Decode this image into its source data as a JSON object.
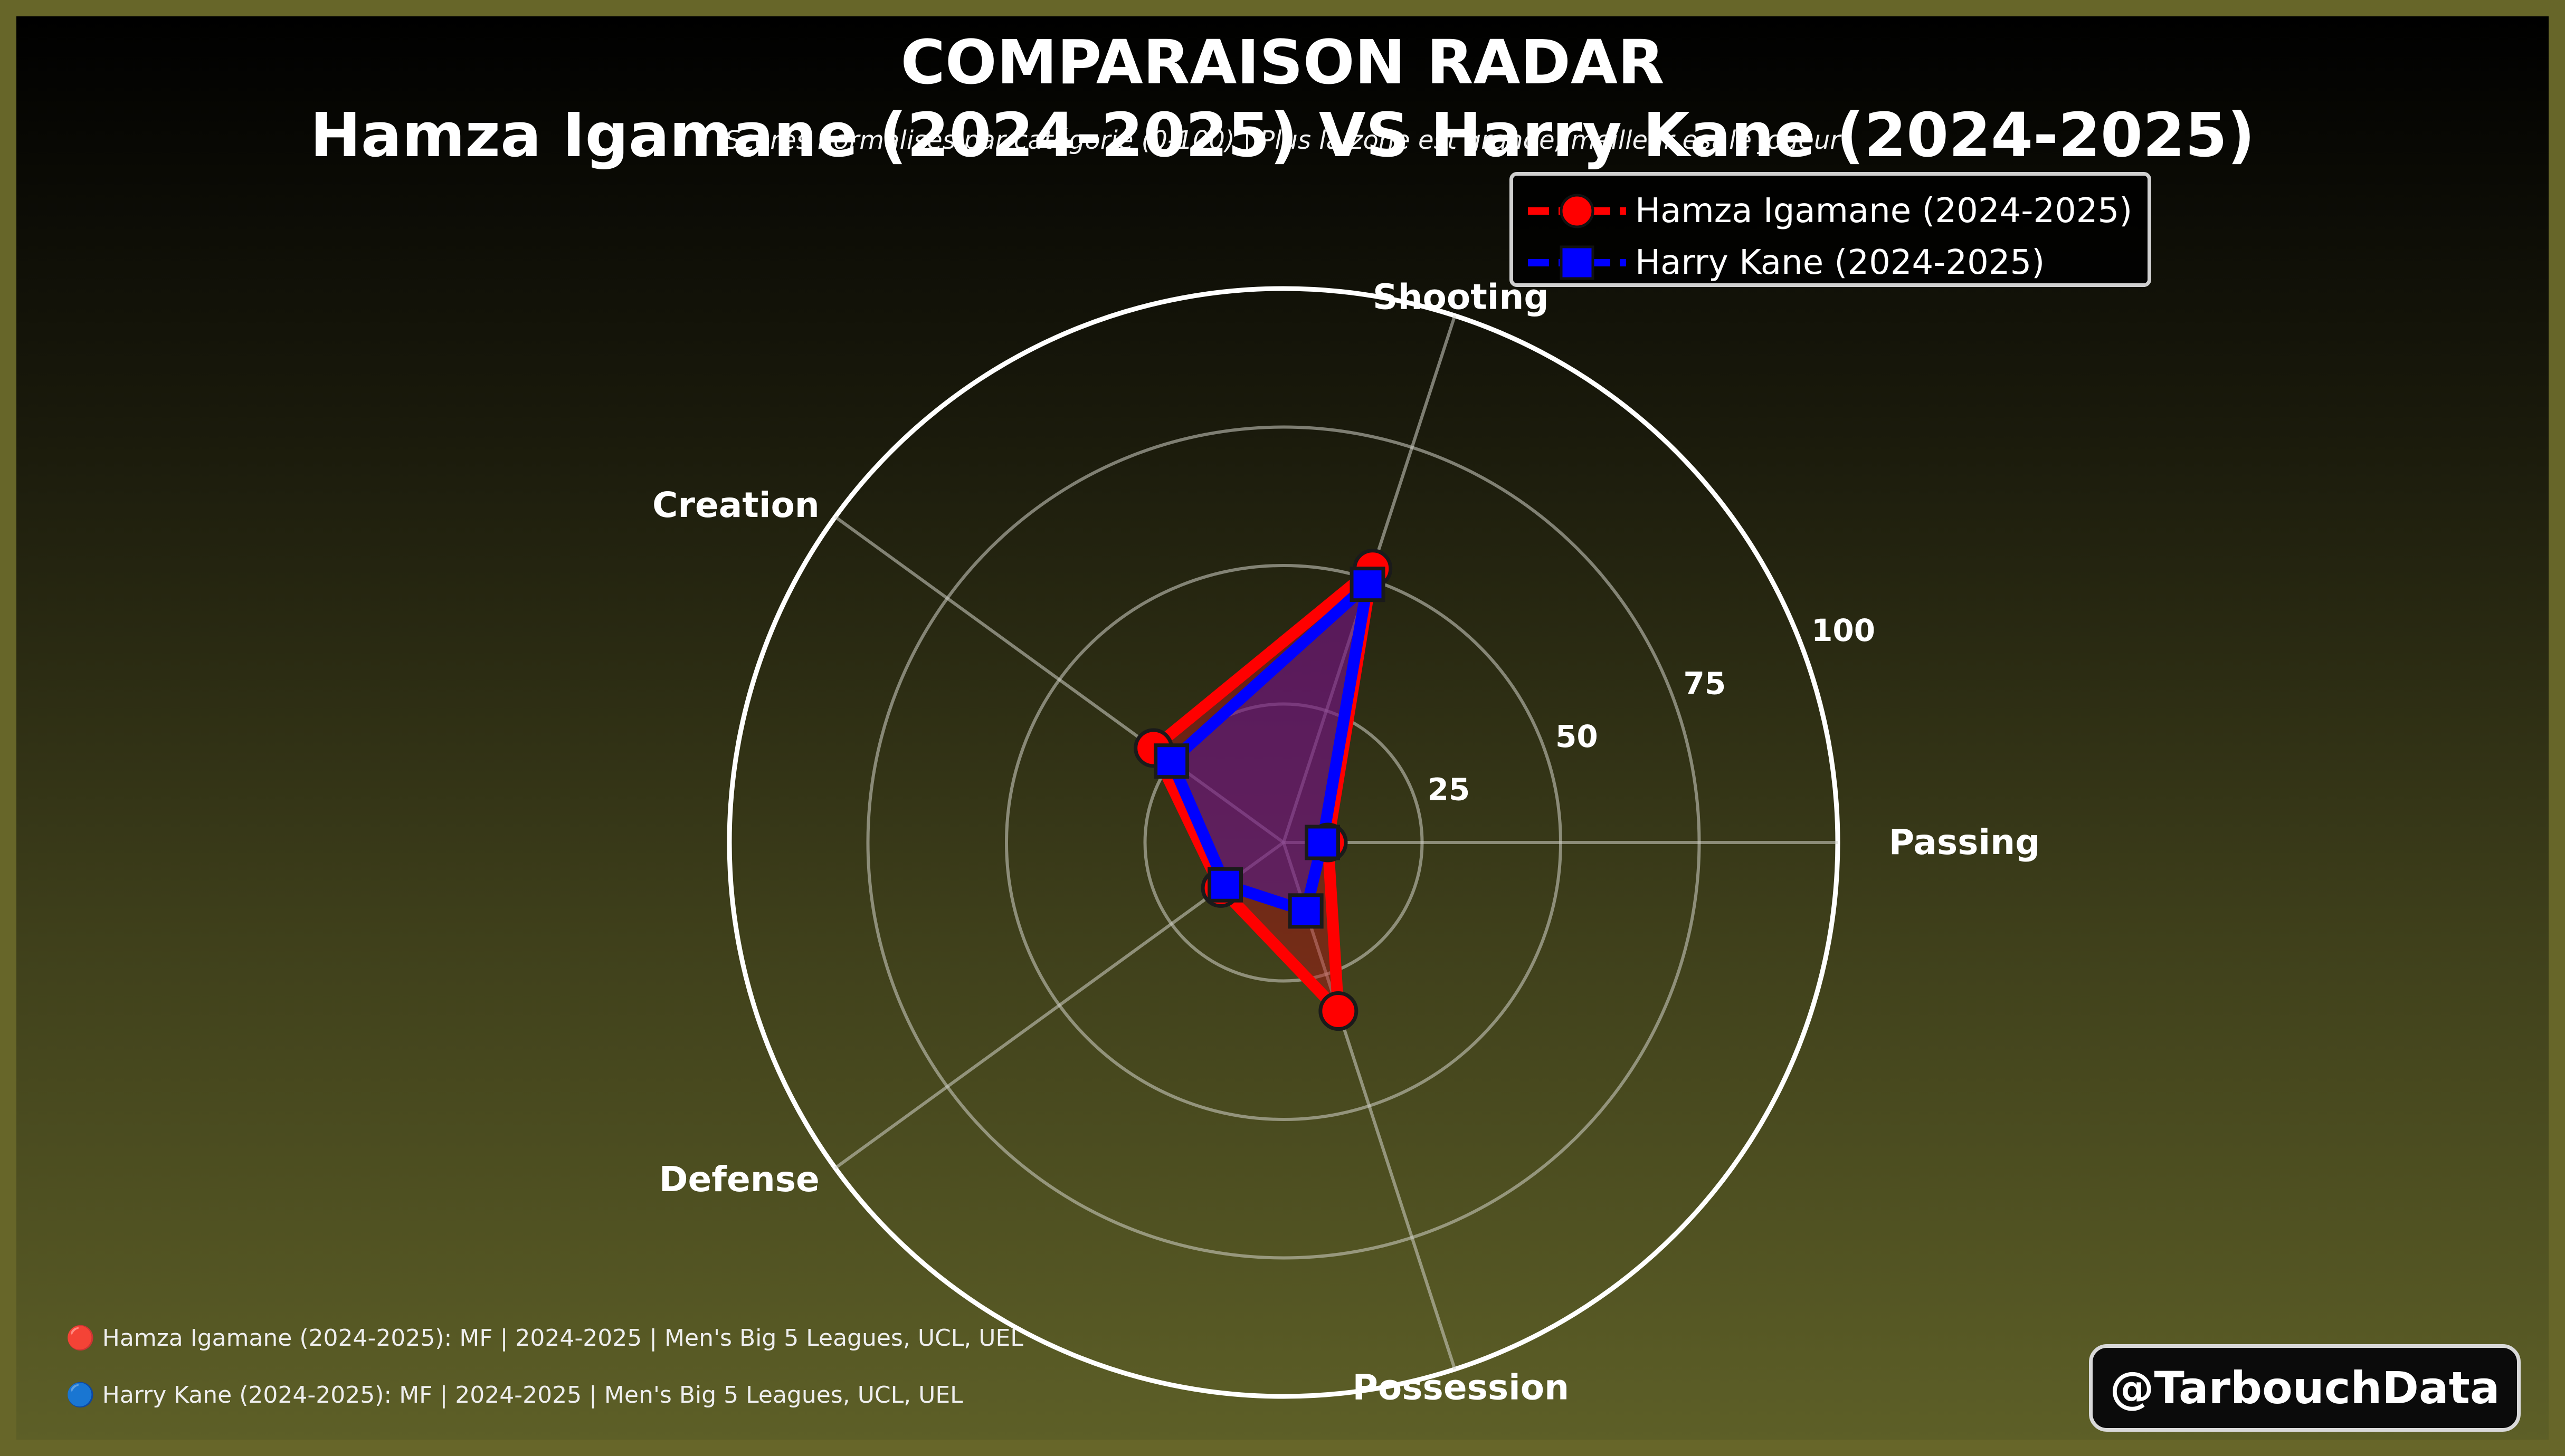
{
  "header": {
    "title_line1": "COMPARAISON RADAR",
    "title_line2": "Hamza Igamane (2024-2025) VS Harry Kane (2024-2025)",
    "subtitle": "Scores normalisés par catégorie (0-100) | Plus la zone est grande, meilleur est le joueur"
  },
  "chart_data": {
    "type": "radar",
    "categories": [
      "Passing",
      "Shooting",
      "Creation",
      "Defense",
      "Possession"
    ],
    "rlim": [
      0,
      100
    ],
    "rticks": [
      25,
      50,
      75,
      100
    ],
    "grid": true,
    "legend_position": "top-right",
    "series": [
      {
        "name": "Hamza Igamane (2024-2025)",
        "color": "#ff0000",
        "marker": "circle",
        "values": [
          8,
          52,
          29,
          14,
          32
        ]
      },
      {
        "name": "Harry Kane (2024-2025)",
        "color": "#0000ff",
        "marker": "square",
        "values": [
          7,
          49,
          25,
          13,
          13
        ]
      }
    ]
  },
  "footnotes": [
    "🔴 Hamza Igamane (2024-2025): MF | 2024-2025 | Men's Big 5 Leagues, UCL, UEL",
    "🔵 Harry Kane (2024-2025): MF | 2024-2025 | Men's Big 5 Leagues, UCL, UEL"
  ],
  "watermark": "@TarbouchData"
}
